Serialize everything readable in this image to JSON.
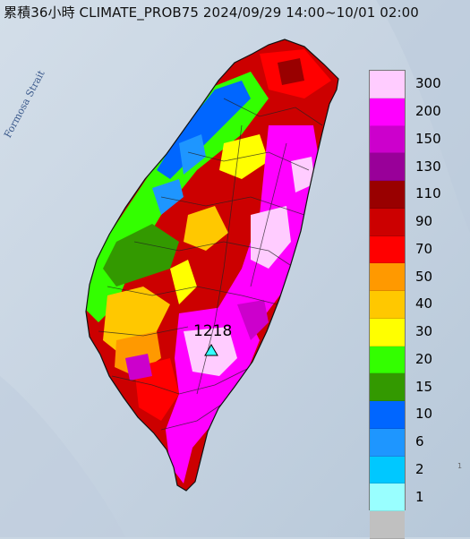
{
  "title": "累積36小時 CLIMATE_PROB75 2024/09/29 14:00~10/01 02:00",
  "sea_label": "Formosa Strait",
  "max_station": {
    "value": "1218"
  },
  "corner_text": "1",
  "legend": {
    "items": [
      {
        "label": "300",
        "color": "#ffccff"
      },
      {
        "label": "200",
        "color": "#ff00ff"
      },
      {
        "label": "150",
        "color": "#cc00cc"
      },
      {
        "label": "130",
        "color": "#990099"
      },
      {
        "label": "110",
        "color": "#990000"
      },
      {
        "label": "90",
        "color": "#cc0000"
      },
      {
        "label": "70",
        "color": "#ff0000"
      },
      {
        "label": "50",
        "color": "#ff9900"
      },
      {
        "label": "40",
        "color": "#ffc800"
      },
      {
        "label": "30",
        "color": "#ffff00"
      },
      {
        "label": "20",
        "color": "#33ff00"
      },
      {
        "label": "15",
        "color": "#339900"
      },
      {
        "label": "10",
        "color": "#0066ff"
      },
      {
        "label": "6",
        "color": "#1e96ff"
      },
      {
        "label": "2",
        "color": "#00c8ff"
      },
      {
        "label": "1",
        "color": "#99ffff"
      },
      {
        "label": "",
        "color": "#c0c0c0"
      }
    ]
  }
}
